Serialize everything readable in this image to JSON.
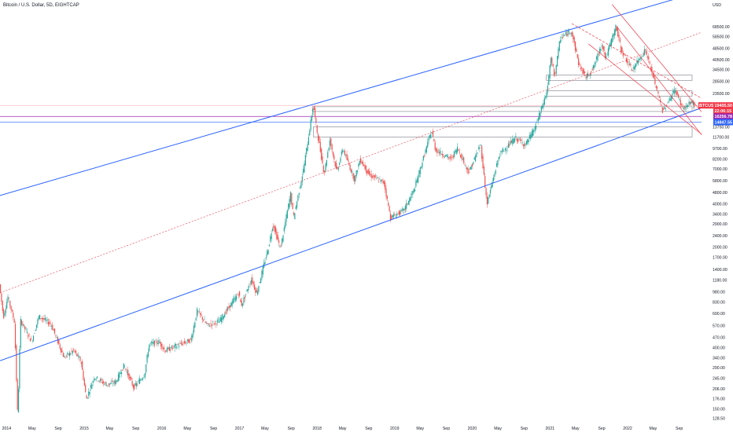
{
  "header": {
    "title": "Bitcoin / U.S. Dollar, 5D, EIGHTCAP"
  },
  "chart_data": {
    "type": "candlestick",
    "title": "Bitcoin / U.S. Dollar, 5D, EIGHTCAP",
    "scale": "log",
    "ylim": [
      120,
      100000
    ],
    "xlim": [
      "2013-12-01",
      "2022-12-15"
    ],
    "currency": "USD",
    "y_ticks": [
      {
        "label": "68500.00",
        "value": 68500
      },
      {
        "label": "58500.00",
        "value": 58500
      },
      {
        "label": "48500.00",
        "value": 48500
      },
      {
        "label": "40500.00",
        "value": 40500
      },
      {
        "label": "34500.00",
        "value": 34500
      },
      {
        "label": "28500.00",
        "value": 28500
      },
      {
        "label": "23500.00",
        "value": 23500
      },
      {
        "label": "13750.00",
        "value": 13750
      },
      {
        "label": "11700.00",
        "value": 11700
      },
      {
        "label": "9700.00",
        "value": 9700
      },
      {
        "label": "8200.00",
        "value": 8200
      },
      {
        "label": "7000.00",
        "value": 7000
      },
      {
        "label": "5800.00",
        "value": 5800
      },
      {
        "label": "4800.00",
        "value": 4800
      },
      {
        "label": "4000.00",
        "value": 4000
      },
      {
        "label": "3400.00",
        "value": 3400
      },
      {
        "label": "2900.00",
        "value": 2900
      },
      {
        "label": "2400.00",
        "value": 2400
      },
      {
        "label": "2000.00",
        "value": 2000
      },
      {
        "label": "1700.00",
        "value": 1700
      },
      {
        "label": "1400.00",
        "value": 1400
      },
      {
        "label": "1180.00",
        "value": 1180
      },
      {
        "label": "980.00",
        "value": 980
      },
      {
        "label": "830.00",
        "value": 830
      },
      {
        "label": "690.00",
        "value": 690
      },
      {
        "label": "570.00",
        "value": 570
      },
      {
        "label": "470.00",
        "value": 470
      },
      {
        "label": "400.00",
        "value": 400
      },
      {
        "label": "340.00",
        "value": 340
      },
      {
        "label": "290.00",
        "value": 290
      },
      {
        "label": "245.00",
        "value": 245
      },
      {
        "label": "206.00",
        "value": 206
      },
      {
        "label": "176.00",
        "value": 176
      },
      {
        "label": "150.00",
        "value": 150
      },
      {
        "label": "128.50",
        "value": 128.5
      }
    ],
    "x_ticks": [
      {
        "label": "2014",
        "date": "2014-01-01"
      },
      {
        "label": "May",
        "date": "2014-05-01"
      },
      {
        "label": "Sep",
        "date": "2014-09-01"
      },
      {
        "label": "2015",
        "date": "2015-01-01"
      },
      {
        "label": "May",
        "date": "2015-05-01"
      },
      {
        "label": "Sep",
        "date": "2015-09-01"
      },
      {
        "label": "2016",
        "date": "2016-01-01"
      },
      {
        "label": "May",
        "date": "2016-05-01"
      },
      {
        "label": "Sep",
        "date": "2016-09-01"
      },
      {
        "label": "2017",
        "date": "2017-01-01"
      },
      {
        "label": "May",
        "date": "2017-05-01"
      },
      {
        "label": "Sep",
        "date": "2017-09-01"
      },
      {
        "label": "2018",
        "date": "2018-01-01"
      },
      {
        "label": "May",
        "date": "2018-05-01"
      },
      {
        "label": "Sep",
        "date": "2018-09-01"
      },
      {
        "label": "2019",
        "date": "2019-01-01"
      },
      {
        "label": "May",
        "date": "2019-05-01"
      },
      {
        "label": "Sep",
        "date": "2019-09-01"
      },
      {
        "label": "2020",
        "date": "2020-01-01"
      },
      {
        "label": "May",
        "date": "2020-05-01"
      },
      {
        "label": "Sep",
        "date": "2020-09-01"
      },
      {
        "label": "2021",
        "date": "2021-01-01"
      },
      {
        "label": "May",
        "date": "2021-05-01"
      },
      {
        "label": "Sep",
        "date": "2021-09-01"
      },
      {
        "label": "2022",
        "date": "2022-01-01"
      },
      {
        "label": "May",
        "date": "2022-05-01"
      },
      {
        "label": "Sep",
        "date": "2022-09-01"
      }
    ],
    "price_path": [
      [
        "2013-12-01",
        1100
      ],
      [
        "2013-12-20",
        650
      ],
      [
        "2014-01-10",
        900
      ],
      [
        "2014-02-10",
        600
      ],
      [
        "2014-02-25",
        130
      ],
      [
        "2014-03-10",
        620
      ],
      [
        "2014-05-01",
        440
      ],
      [
        "2014-06-05",
        660
      ],
      [
        "2014-08-01",
        580
      ],
      [
        "2014-10-01",
        340
      ],
      [
        "2014-11-15",
        380
      ],
      [
        "2014-12-20",
        320
      ],
      [
        "2015-01-14",
        175
      ],
      [
        "2015-02-20",
        250
      ],
      [
        "2015-04-20",
        220
      ],
      [
        "2015-06-01",
        230
      ],
      [
        "2015-07-10",
        300
      ],
      [
        "2015-08-25",
        210
      ],
      [
        "2015-10-15",
        260
      ],
      [
        "2015-11-05",
        420
      ],
      [
        "2015-12-20",
        440
      ],
      [
        "2016-01-20",
        380
      ],
      [
        "2016-03-20",
        415
      ],
      [
        "2016-05-20",
        450
      ],
      [
        "2016-06-18",
        720
      ],
      [
        "2016-08-05",
        570
      ],
      [
        "2016-10-01",
        610
      ],
      [
        "2016-12-31",
        960
      ],
      [
        "2017-01-12",
        780
      ],
      [
        "2017-03-01",
        1200
      ],
      [
        "2017-03-25",
        950
      ],
      [
        "2017-05-20",
        2000
      ],
      [
        "2017-06-10",
        2900
      ],
      [
        "2017-07-15",
        1950
      ],
      [
        "2017-09-01",
        4700
      ],
      [
        "2017-09-15",
        3200
      ],
      [
        "2017-11-01",
        7000
      ],
      [
        "2017-12-17",
        19500
      ],
      [
        "2018-01-01",
        13500
      ],
      [
        "2018-02-06",
        6500
      ],
      [
        "2018-03-05",
        11200
      ],
      [
        "2018-04-06",
        6700
      ],
      [
        "2018-05-05",
        9700
      ],
      [
        "2018-06-29",
        5900
      ],
      [
        "2018-07-25",
        8200
      ],
      [
        "2018-09-05",
        6400
      ],
      [
        "2018-11-15",
        5600
      ],
      [
        "2018-12-15",
        3200
      ],
      [
        "2019-02-15",
        3600
      ],
      [
        "2019-04-05",
        5000
      ],
      [
        "2019-06-26",
        13000
      ],
      [
        "2019-07-15",
        9500
      ],
      [
        "2019-09-25",
        8200
      ],
      [
        "2019-10-26",
        9800
      ],
      [
        "2019-12-18",
        6600
      ],
      [
        "2020-02-12",
        10400
      ],
      [
        "2020-03-13",
        4000
      ],
      [
        "2020-05-10",
        8800
      ],
      [
        "2020-07-25",
        11500
      ],
      [
        "2020-09-10",
        10300
      ],
      [
        "2020-10-25",
        13500
      ],
      [
        "2020-12-20",
        24000
      ],
      [
        "2021-01-08",
        41000
      ],
      [
        "2021-01-25",
        31000
      ],
      [
        "2021-02-21",
        57000
      ],
      [
        "2021-04-14",
        64500
      ],
      [
        "2021-05-20",
        37000
      ],
      [
        "2021-06-22",
        30500
      ],
      [
        "2021-07-25",
        35000
      ],
      [
        "2021-09-06",
        52500
      ],
      [
        "2021-09-22",
        41000
      ],
      [
        "2021-11-10",
        69000
      ],
      [
        "2021-12-05",
        47000
      ],
      [
        "2022-01-24",
        34000
      ],
      [
        "2022-03-28",
        47500
      ],
      [
        "2022-05-12",
        28000
      ],
      [
        "2022-06-18",
        17600
      ],
      [
        "2022-08-14",
        25000
      ],
      [
        "2022-09-20",
        18600
      ],
      [
        "2022-10-10",
        19100
      ],
      [
        "2022-10-30",
        20700
      ],
      [
        "2022-11-12",
        19470
      ]
    ],
    "price_tags": [
      {
        "label": "BTCUSD",
        "value": "19405.50",
        "price": 19405.5,
        "color": "#f23645"
      },
      {
        "label": "",
        "value": "22:06:15",
        "price": 18200,
        "color": "#f23645"
      },
      {
        "label": "",
        "value": "16256.78",
        "price": 16256.78,
        "color": "#9c27b0"
      },
      {
        "label": "",
        "value": "14847.55",
        "price": 14847.55,
        "color": "#2962ff"
      }
    ],
    "colors": {
      "up": "#26a69a",
      "down": "#ef5350",
      "channel": "#2962ff",
      "midline": "#f23645",
      "downtrend": "#f23645",
      "horizontal_purple": "#9c27b0",
      "horizontal_blue": "#2962ff"
    }
  },
  "axis": {
    "currency_label": "USD"
  }
}
